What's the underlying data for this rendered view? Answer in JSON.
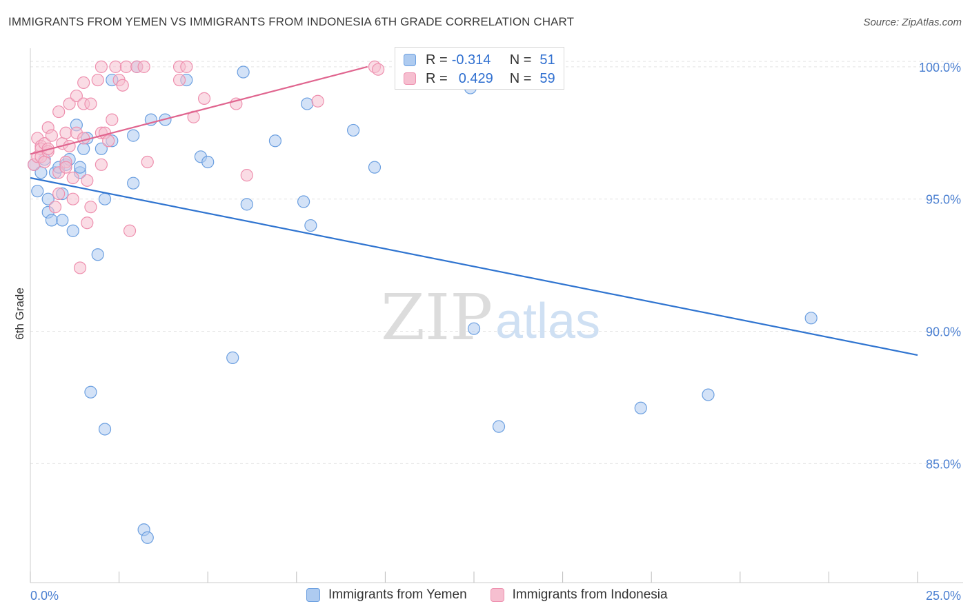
{
  "title": "IMMIGRANTS FROM YEMEN VS IMMIGRANTS FROM INDONESIA 6TH GRADE CORRELATION CHART",
  "source": "Source: ZipAtlas.com",
  "watermark": {
    "zip": "ZIP",
    "atlas": "atlas"
  },
  "legend": {
    "r_label": "R =",
    "n_label": "N =",
    "rows": [
      {
        "r_value": "-0.314",
        "n_value": "51"
      },
      {
        "r_value": "0.429",
        "n_value": "59"
      }
    ]
  },
  "bottom_legend": [
    "Immigrants from Yemen",
    "Immigrants from Indonesia"
  ],
  "colors": {
    "yemen_fill": "#aecbf0",
    "yemen_stroke": "#6b9fe0",
    "yemen_line": "#2f74d0",
    "indonesia_fill": "#f6bfd0",
    "indonesia_stroke": "#ee8fae",
    "indonesia_line": "#e0658f",
    "tick_text": "#4a7fd1",
    "grid": "#e4e4e4"
  },
  "chart_data": {
    "type": "scatter",
    "xlabel": "",
    "ylabel": "6th Grade",
    "xlim": [
      0,
      25
    ],
    "ylim": [
      80.5,
      100.7
    ],
    "x_tick_labels": [
      "0.0%",
      "25.0%"
    ],
    "y_ticks": [
      85,
      90,
      95,
      100
    ],
    "y_tick_labels": [
      "85.0%",
      "90.0%",
      "95.0%",
      "100.0%"
    ],
    "grid": "horizontal dashed",
    "series": [
      {
        "name": "Immigrants from Yemen",
        "points": [
          [
            0.1,
            96.3
          ],
          [
            0.2,
            95.3
          ],
          [
            0.3,
            96.0
          ],
          [
            0.4,
            96.5
          ],
          [
            0.5,
            94.5
          ],
          [
            0.5,
            95.0
          ],
          [
            0.6,
            94.2
          ],
          [
            0.7,
            96.0
          ],
          [
            0.8,
            96.2
          ],
          [
            0.9,
            94.2
          ],
          [
            0.9,
            95.2
          ],
          [
            1.0,
            96.3
          ],
          [
            1.1,
            96.5
          ],
          [
            1.2,
            93.8
          ],
          [
            1.3,
            97.8
          ],
          [
            1.4,
            96.0
          ],
          [
            1.4,
            96.2
          ],
          [
            1.5,
            96.9
          ],
          [
            1.6,
            97.3
          ],
          [
            1.7,
            87.7
          ],
          [
            1.9,
            92.9
          ],
          [
            2.0,
            96.9
          ],
          [
            2.1,
            95.0
          ],
          [
            2.1,
            86.3
          ],
          [
            2.3,
            97.2
          ],
          [
            2.3,
            99.5
          ],
          [
            2.9,
            97.4
          ],
          [
            2.9,
            95.6
          ],
          [
            3.0,
            100.0
          ],
          [
            3.2,
            82.5
          ],
          [
            3.3,
            82.2
          ],
          [
            3.4,
            98.0
          ],
          [
            3.8,
            98.0
          ],
          [
            4.4,
            99.5
          ],
          [
            4.8,
            96.6
          ],
          [
            5.0,
            96.4
          ],
          [
            5.7,
            89.0
          ],
          [
            6.0,
            99.8
          ],
          [
            6.1,
            94.8
          ],
          [
            6.9,
            97.2
          ],
          [
            7.7,
            94.9
          ],
          [
            7.8,
            98.6
          ],
          [
            7.9,
            94.0
          ],
          [
            9.1,
            97.6
          ],
          [
            9.7,
            96.2
          ],
          [
            12.4,
            99.2
          ],
          [
            12.5,
            90.1
          ],
          [
            13.2,
            86.4
          ],
          [
            17.2,
            87.1
          ],
          [
            19.1,
            87.6
          ],
          [
            22.0,
            90.5
          ]
        ]
      },
      {
        "name": "Immigrants from Indonesia",
        "points": [
          [
            0.1,
            96.3
          ],
          [
            0.2,
            96.6
          ],
          [
            0.2,
            97.3
          ],
          [
            0.3,
            97.0
          ],
          [
            0.3,
            96.9
          ],
          [
            0.3,
            96.6
          ],
          [
            0.4,
            97.1
          ],
          [
            0.4,
            96.4
          ],
          [
            0.5,
            96.8
          ],
          [
            0.5,
            97.7
          ],
          [
            0.6,
            97.4
          ],
          [
            0.7,
            94.7
          ],
          [
            0.8,
            96.0
          ],
          [
            0.8,
            95.2
          ],
          [
            0.8,
            98.3
          ],
          [
            0.9,
            97.1
          ],
          [
            1.0,
            97.5
          ],
          [
            1.0,
            96.4
          ],
          [
            1.1,
            97.0
          ],
          [
            1.2,
            95.8
          ],
          [
            1.2,
            95.0
          ],
          [
            1.1,
            98.6
          ],
          [
            1.3,
            97.5
          ],
          [
            1.3,
            98.9
          ],
          [
            1.4,
            92.4
          ],
          [
            1.5,
            97.3
          ],
          [
            1.5,
            99.4
          ],
          [
            1.5,
            98.6
          ],
          [
            1.6,
            94.1
          ],
          [
            1.6,
            95.7
          ],
          [
            1.7,
            94.7
          ],
          [
            1.7,
            98.6
          ],
          [
            1.9,
            99.5
          ],
          [
            2.0,
            100.0
          ],
          [
            2.0,
            97.5
          ],
          [
            2.0,
            96.3
          ],
          [
            2.1,
            97.5
          ],
          [
            2.2,
            97.2
          ],
          [
            2.3,
            98.0
          ],
          [
            2.4,
            100.0
          ],
          [
            2.5,
            99.5
          ],
          [
            2.6,
            99.3
          ],
          [
            2.7,
            100.0
          ],
          [
            2.8,
            93.8
          ],
          [
            3.0,
            100.0
          ],
          [
            3.2,
            100.0
          ],
          [
            3.3,
            96.4
          ],
          [
            4.2,
            100.0
          ],
          [
            4.2,
            99.5
          ],
          [
            4.4,
            100.0
          ],
          [
            4.6,
            98.1
          ],
          [
            4.9,
            98.8
          ],
          [
            5.8,
            98.6
          ],
          [
            6.1,
            95.9
          ],
          [
            8.1,
            98.7
          ],
          [
            9.7,
            100.0
          ],
          [
            9.8,
            99.9
          ],
          [
            0.5,
            96.9
          ],
          [
            1.0,
            96.2
          ]
        ]
      }
    ],
    "trend_lines": [
      {
        "series": "Immigrants from Yemen",
        "x": [
          0,
          25
        ],
        "y": [
          95.8,
          89.1
        ]
      },
      {
        "series": "Immigrants from Indonesia",
        "x": [
          0,
          9.5
        ],
        "y": [
          96.7,
          100.0
        ]
      }
    ]
  }
}
